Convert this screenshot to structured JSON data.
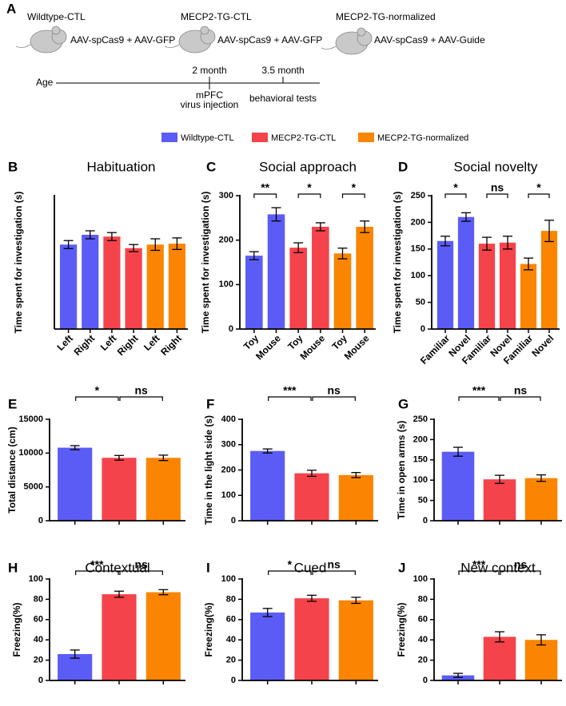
{
  "panel_a": {
    "label": "A",
    "groups": [
      {
        "name": "Wildtype-CTL",
        "treatment": "AAV-spCas9 + AAV-GFP"
      },
      {
        "name": "MECP2-TG-CTL",
        "treatment": "AAV-spCas9 + AAV-GFP"
      },
      {
        "name": "MECP2-TG-normalized",
        "treatment": "AAV-spCas9 + AAV-Guide"
      }
    ],
    "timeline": {
      "label": "Age",
      "events": [
        {
          "time": "2 month",
          "event": [
            "mPFC",
            "virus injection"
          ]
        },
        {
          "time": "3.5 month",
          "event": [
            "behavioral tests"
          ]
        }
      ]
    }
  },
  "legend": [
    {
      "name": "Wildtype-CTL",
      "color": "#5b5cf6"
    },
    {
      "name": "MECP2-TG-CTL",
      "color": "#f5434b"
    },
    {
      "name": "MECP2-TG-normalized",
      "color": "#fb8500"
    }
  ],
  "chart_data": [
    {
      "panel": "B",
      "type": "bar",
      "title": "Habituation",
      "y_label": "Time spent for investigation (s)",
      "categories": [
        "Left",
        "Right",
        "Left",
        "Right",
        "Left",
        "Right"
      ],
      "values": [
        190,
        212,
        208,
        182,
        190,
        192
      ],
      "errors": [
        9,
        9,
        9,
        8,
        13,
        13
      ],
      "colors": [
        "#5b5cf6",
        "#5b5cf6",
        "#f5434b",
        "#f5434b",
        "#fb8500",
        "#fb8500"
      ],
      "ylim": [
        0,
        300
      ]
    },
    {
      "panel": "C",
      "type": "bar",
      "title": "Social approach",
      "y_label": "Time spent for investigation (s)",
      "categories": [
        "Toy",
        "Mouse",
        "Toy",
        "Mouse",
        "Toy",
        "Mouse"
      ],
      "values": [
        165,
        258,
        183,
        230,
        170,
        230
      ],
      "errors": [
        9,
        15,
        11,
        9,
        12,
        13
      ],
      "colors": [
        "#5b5cf6",
        "#5b5cf6",
        "#f5434b",
        "#f5434b",
        "#fb8500",
        "#fb8500"
      ],
      "ylim": [
        0,
        300
      ],
      "yticks": [
        0,
        100,
        200,
        300
      ],
      "brackets": [
        {
          "bars": [
            0,
            1
          ],
          "text": "**"
        },
        {
          "bars": [
            2,
            3
          ],
          "text": "*"
        },
        {
          "bars": [
            4,
            5
          ],
          "text": "*"
        }
      ]
    },
    {
      "panel": "D",
      "type": "bar",
      "title": "Social novelty",
      "y_label": "Time spent for investigation (s)",
      "categories": [
        "Familiar",
        "Novel",
        "Familiar",
        "Novel",
        "Familiar",
        "Novel"
      ],
      "values": [
        165,
        210,
        160,
        162,
        122,
        184
      ],
      "errors": [
        9,
        8,
        12,
        12,
        11,
        20
      ],
      "colors": [
        "#5b5cf6",
        "#5b5cf6",
        "#f5434b",
        "#f5434b",
        "#fb8500",
        "#fb8500"
      ],
      "ylim": [
        0,
        250
      ],
      "yticks": [
        0,
        50,
        100,
        150,
        200,
        250
      ],
      "brackets": [
        {
          "bars": [
            0,
            1
          ],
          "text": "*"
        },
        {
          "bars": [
            2,
            3
          ],
          "text": "ns"
        },
        {
          "bars": [
            4,
            5
          ],
          "text": "*"
        }
      ]
    },
    {
      "panel": "E",
      "type": "bar",
      "y_label": "Total distance (cm)",
      "categories": [
        null,
        null,
        null
      ],
      "values": [
        10800,
        9300,
        9300
      ],
      "errors": [
        300,
        350,
        400
      ],
      "colors": [
        "#5b5cf6",
        "#f5434b",
        "#fb8500"
      ],
      "ylim": [
        0,
        15000
      ],
      "yticks": [
        0,
        5000,
        10000,
        15000
      ],
      "brackets": [
        {
          "bars": [
            0,
            1
          ],
          "text": "*"
        },
        {
          "bars": [
            1,
            2
          ],
          "text": "ns"
        }
      ]
    },
    {
      "panel": "F",
      "type": "bar",
      "y_label": "Time in the light side (s)",
      "categories": [
        null,
        null,
        null
      ],
      "values": [
        275,
        187,
        180
      ],
      "errors": [
        8,
        12,
        10
      ],
      "colors": [
        "#5b5cf6",
        "#f5434b",
        "#fb8500"
      ],
      "ylim": [
        0,
        400
      ],
      "yticks": [
        0,
        100,
        200,
        300,
        400
      ],
      "brackets": [
        {
          "bars": [
            0,
            1
          ],
          "text": "***"
        },
        {
          "bars": [
            1,
            2
          ],
          "text": "ns"
        }
      ]
    },
    {
      "panel": "G",
      "type": "bar",
      "y_label": "Time in open arms (s)",
      "categories": [
        null,
        null,
        null
      ],
      "values": [
        170,
        102,
        105
      ],
      "errors": [
        11,
        10,
        8
      ],
      "colors": [
        "#5b5cf6",
        "#f5434b",
        "#fb8500"
      ],
      "ylim": [
        0,
        250
      ],
      "yticks": [
        0,
        50,
        100,
        150,
        200,
        250
      ],
      "brackets": [
        {
          "bars": [
            0,
            1
          ],
          "text": "***"
        },
        {
          "bars": [
            1,
            2
          ],
          "text": "ns"
        }
      ]
    },
    {
      "panel": "H",
      "type": "bar",
      "title": "Contextual",
      "y_label": "Freezing(%)",
      "categories": [
        null,
        null,
        null
      ],
      "values": [
        26,
        85,
        87
      ],
      "errors": [
        4,
        3,
        2.5
      ],
      "colors": [
        "#5b5cf6",
        "#f5434b",
        "#fb8500"
      ],
      "ylim": [
        0,
        100
      ],
      "yticks": [
        0,
        20,
        40,
        60,
        80,
        100
      ],
      "brackets": [
        {
          "bars": [
            0,
            1
          ],
          "text": "***"
        },
        {
          "bars": [
            1,
            2
          ],
          "text": "ns"
        }
      ]
    },
    {
      "panel": "I",
      "type": "bar",
      "title": "Cued",
      "y_label": "Freezing(%)",
      "categories": [
        null,
        null,
        null
      ],
      "values": [
        67,
        81,
        79
      ],
      "errors": [
        4,
        3,
        3
      ],
      "colors": [
        "#5b5cf6",
        "#f5434b",
        "#fb8500"
      ],
      "ylim": [
        0,
        100
      ],
      "yticks": [
        0,
        20,
        40,
        60,
        80,
        100
      ],
      "brackets": [
        {
          "bars": [
            0,
            1
          ],
          "text": "*"
        },
        {
          "bars": [
            1,
            2
          ],
          "text": "ns"
        }
      ]
    },
    {
      "panel": "J",
      "type": "bar",
      "title": "New context",
      "y_label": "Freezing(%)",
      "categories": [
        null,
        null,
        null
      ],
      "values": [
        5,
        43,
        40
      ],
      "errors": [
        2,
        5,
        5
      ],
      "colors": [
        "#5b5cf6",
        "#f5434b",
        "#fb8500"
      ],
      "ylim": [
        0,
        100
      ],
      "yticks": [
        0,
        20,
        40,
        60,
        80,
        100
      ],
      "brackets": [
        {
          "bars": [
            0,
            1
          ],
          "text": "***"
        },
        {
          "bars": [
            1,
            2
          ],
          "text": "ns"
        }
      ]
    }
  ]
}
